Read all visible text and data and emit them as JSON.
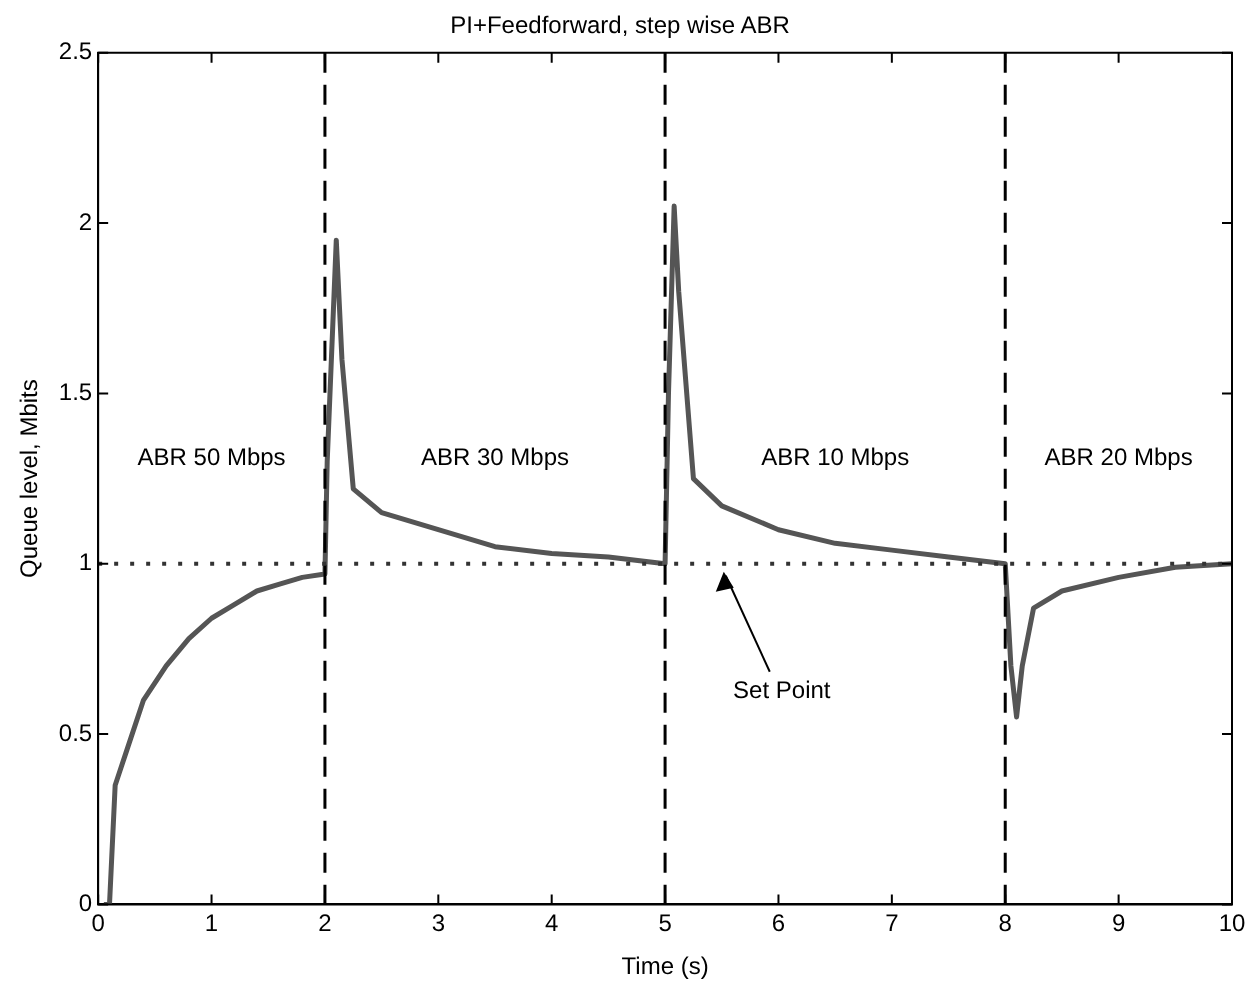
{
  "chart_data": {
    "type": "line",
    "title": "PI+Feedforward, step wise ABR",
    "xlabel": "Time (s)",
    "ylabel": "Queue level, Mbits",
    "xlim": [
      0,
      10
    ],
    "xticks": [
      0,
      1,
      2,
      3,
      4,
      5,
      6,
      7,
      8,
      9,
      10
    ],
    "ylim": [
      0,
      2.5
    ],
    "yticks": [
      0,
      0.5,
      1,
      1.5,
      2,
      2.5
    ],
    "grid": false,
    "legend": false,
    "marker": "none",
    "line_style": "solid",
    "series": [
      {
        "color": "#555555",
        "x": [
          0.05,
          0.1,
          0.15,
          0.25,
          0.4,
          0.6,
          0.8,
          1.0,
          1.2,
          1.4,
          1.6,
          1.8,
          2.0,
          2.02,
          2.1,
          2.15,
          2.25,
          2.5,
          3,
          3.5,
          4,
          4.5,
          5,
          5.03,
          5.08,
          5.12,
          5.25,
          5.5,
          6,
          6.5,
          7,
          7.5,
          8,
          8.05,
          8.1,
          8.15,
          8.25,
          8.5,
          9,
          9.5,
          10
        ],
        "values": [
          0,
          0,
          0.35,
          0.45,
          0.6,
          0.7,
          0.78,
          0.84,
          0.88,
          0.92,
          0.94,
          0.96,
          0.97,
          1.3,
          1.95,
          1.6,
          1.22,
          1.15,
          1.1,
          1.05,
          1.03,
          1.02,
          1.0,
          1.5,
          2.05,
          1.8,
          1.25,
          1.17,
          1.1,
          1.06,
          1.04,
          1.02,
          1.0,
          0.7,
          0.55,
          0.7,
          0.87,
          0.92,
          0.96,
          0.99,
          1.0
        ]
      }
    ],
    "ref_lines": [
      {
        "axis": "x",
        "value": 2,
        "color": "#000000",
        "line_style": "dashed"
      },
      {
        "axis": "x",
        "value": 5,
        "color": "#000000",
        "line_style": "dashed"
      },
      {
        "axis": "x",
        "value": 8,
        "color": "#000000",
        "line_style": "dashed"
      },
      {
        "axis": "y",
        "value": 1,
        "color": "#333333",
        "line_style": "dotted"
      }
    ],
    "annotations": [
      "ABR 50 Mbps",
      "ABR 30 Mbps",
      "ABR 10 Mbps",
      "ABR 20 Mbps",
      {
        "text": "Set Point",
        "x": 5.5,
        "y": 1
      }
    ]
  }
}
